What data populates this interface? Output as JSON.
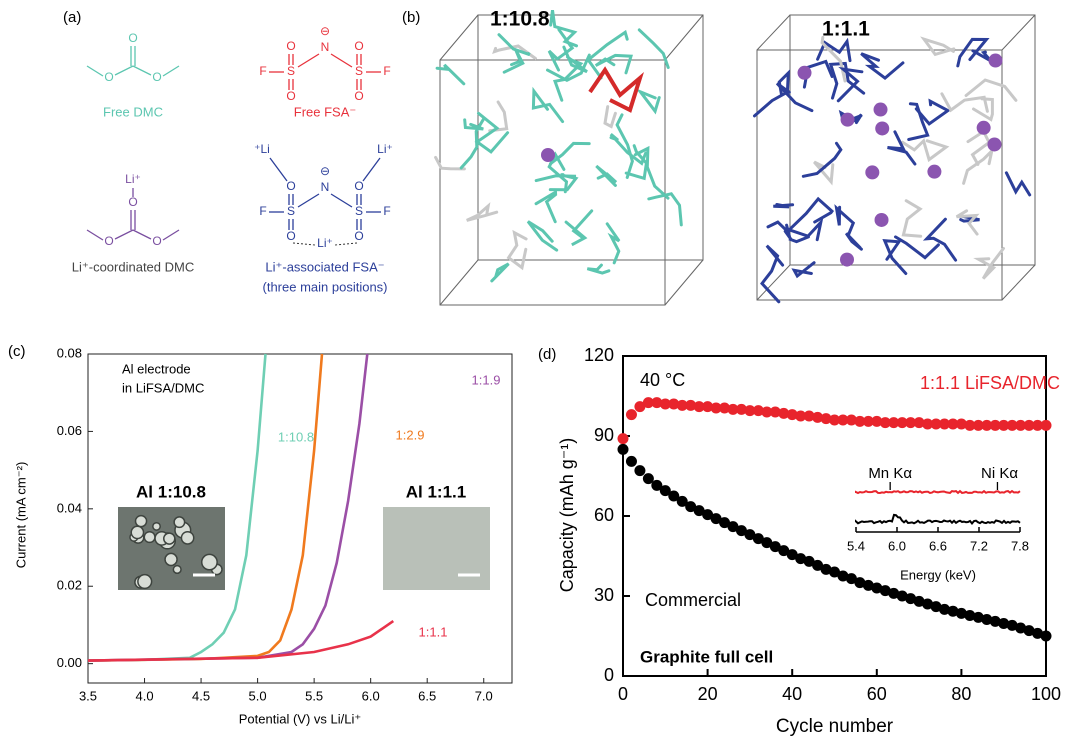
{
  "panel_a": {
    "label": "(a)",
    "molecules": [
      {
        "name": "Free DMC",
        "atoms": [
          "O",
          "O",
          "O"
        ]
      },
      {
        "name": "Free FSA⁻",
        "atoms": [
          "⊖",
          "N",
          "O",
          "O",
          "O",
          "O",
          "S",
          "S",
          "F",
          "F"
        ]
      },
      {
        "name": "Li⁺-coordinated DMC",
        "atoms": [
          "Li⁺",
          "O",
          "O",
          "O"
        ]
      },
      {
        "name": "Li⁺-associated FSA⁻",
        "note": "(three main positions)",
        "atoms": [
          "⁺Li",
          "Li⁺",
          "⊖",
          "N",
          "O",
          "O",
          "O",
          "O",
          "S",
          "S",
          "F",
          "F",
          "Li⁺"
        ]
      }
    ]
  },
  "panel_b": {
    "label": "(b)",
    "boxes": [
      "1:10.8",
      "1:1.1"
    ]
  },
  "chart_data": [
    {
      "type": "line",
      "panel": "(c)",
      "x_label": "Potential (V) vs Li/Li⁺",
      "y_label": "Current (mA cm⁻²)",
      "annotation": [
        "Al electrode",
        "in LiFSA/DMC"
      ],
      "insets": [
        "Al  1:10.8",
        "Al  1:1.1"
      ],
      "xlim": [
        3.5,
        7.25
      ],
      "ylim": [
        -0.005,
        0.08
      ],
      "xticks": [
        3.5,
        {
          "value": 4,
          "label": "4.0"
        },
        4.5,
        {
          "value": 5,
          "label": "5.0"
        },
        5.5,
        {
          "value": 6,
          "label": "6.0"
        },
        6.5,
        {
          "value": 7,
          "label": "7.0"
        }
      ],
      "yticks": [
        {
          "value": 0,
          "label": "0.00"
        },
        {
          "value": 0.02,
          "label": "0.02"
        },
        {
          "value": 0.04,
          "label": "0.04"
        },
        {
          "value": 0.06,
          "label": "0.06"
        },
        {
          "value": 0.08,
          "label": "0.08"
        }
      ],
      "series": [
        {
          "name": "1:10.8",
          "color": "#6fcfb4",
          "x": [
            3.5,
            4.0,
            4.4,
            4.5,
            4.6,
            4.7,
            4.8,
            4.9,
            5.0,
            5.07
          ],
          "values": [
            0.0008,
            0.001,
            0.0015,
            0.003,
            0.005,
            0.008,
            0.014,
            0.028,
            0.055,
            0.08
          ]
        },
        {
          "name": "1:2.9",
          "color": "#f07a1e",
          "x": [
            3.5,
            4.5,
            5.0,
            5.1,
            5.2,
            5.3,
            5.4,
            5.5,
            5.57
          ],
          "values": [
            0.0008,
            0.0012,
            0.002,
            0.003,
            0.006,
            0.014,
            0.028,
            0.055,
            0.08
          ]
        },
        {
          "name": "1:1.9",
          "color": "#9b4fa6",
          "x": [
            3.5,
            5.0,
            5.3,
            5.4,
            5.5,
            5.6,
            5.7,
            5.8,
            5.9,
            5.97
          ],
          "values": [
            0.0008,
            0.0015,
            0.003,
            0.005,
            0.009,
            0.015,
            0.026,
            0.042,
            0.062,
            0.08
          ]
        },
        {
          "name": "1:1.1",
          "color": "#e8324a",
          "x": [
            3.5,
            5.0,
            5.5,
            5.8,
            6.0,
            6.2
          ],
          "values": [
            0.0008,
            0.0015,
            0.003,
            0.005,
            0.007,
            0.011
          ]
        }
      ]
    },
    {
      "type": "scatter",
      "panel": "(d)",
      "x_label": "Cycle number",
      "y_label": "Capacity (mAh g⁻¹)",
      "annotations": [
        "40 °C",
        "Graphite full cell"
      ],
      "xlim": [
        0,
        100
      ],
      "ylim": [
        0,
        120
      ],
      "xticks": [
        0,
        20,
        40,
        60,
        80,
        100
      ],
      "yticks": [
        0,
        30,
        60,
        90,
        120
      ],
      "x": [
        0,
        2,
        4,
        6,
        8,
        10,
        12,
        14,
        16,
        18,
        20,
        22,
        24,
        26,
        28,
        30,
        32,
        34,
        36,
        38,
        40,
        42,
        44,
        46,
        48,
        50,
        52,
        54,
        56,
        58,
        60,
        62,
        64,
        66,
        68,
        70,
        72,
        74,
        76,
        78,
        80,
        82,
        84,
        86,
        88,
        90,
        92,
        94,
        96,
        98,
        100
      ],
      "series": [
        {
          "name": "1:1.1 LiFSA/DMC",
          "color": "#e8242c",
          "values": [
            89,
            98,
            101,
            102.5,
            102.5,
            102,
            102,
            101.5,
            101.5,
            101,
            101,
            100.5,
            100.5,
            100,
            100,
            99.5,
            99.5,
            99,
            99,
            98.5,
            98,
            97.5,
            97.5,
            97,
            96.5,
            96,
            96,
            96,
            95.5,
            95.5,
            95.5,
            95,
            95,
            95,
            95,
            95,
            94.5,
            94.5,
            94.5,
            94.5,
            94.5,
            94,
            94,
            94,
            94,
            94,
            94,
            94,
            94,
            94,
            94
          ]
        },
        {
          "name": "Commercial",
          "color": "#000000",
          "values": [
            85,
            80.5,
            77,
            74,
            71.5,
            69.5,
            67.5,
            65.5,
            63.5,
            62,
            60.5,
            59,
            57.5,
            56,
            54.5,
            53,
            51.5,
            50,
            48.5,
            47,
            45.5,
            44,
            43,
            41.5,
            40,
            39,
            37.5,
            36.5,
            35,
            34,
            33,
            32,
            31,
            30,
            29,
            28,
            27,
            26,
            25,
            24.3,
            23.5,
            22.7,
            22,
            21.2,
            20.5,
            19.7,
            19,
            18,
            17,
            16,
            15
          ]
        }
      ],
      "inset": {
        "x_label": "Energy (keV)",
        "peaks": [
          "Mn Kα",
          "Ni Kα"
        ],
        "xlim": [
          5.4,
          7.8
        ],
        "xticks": [
          5.4,
          {
            "value": 6,
            "label": "6.0"
          },
          6.6,
          7.2,
          7.8
        ]
      }
    }
  ]
}
